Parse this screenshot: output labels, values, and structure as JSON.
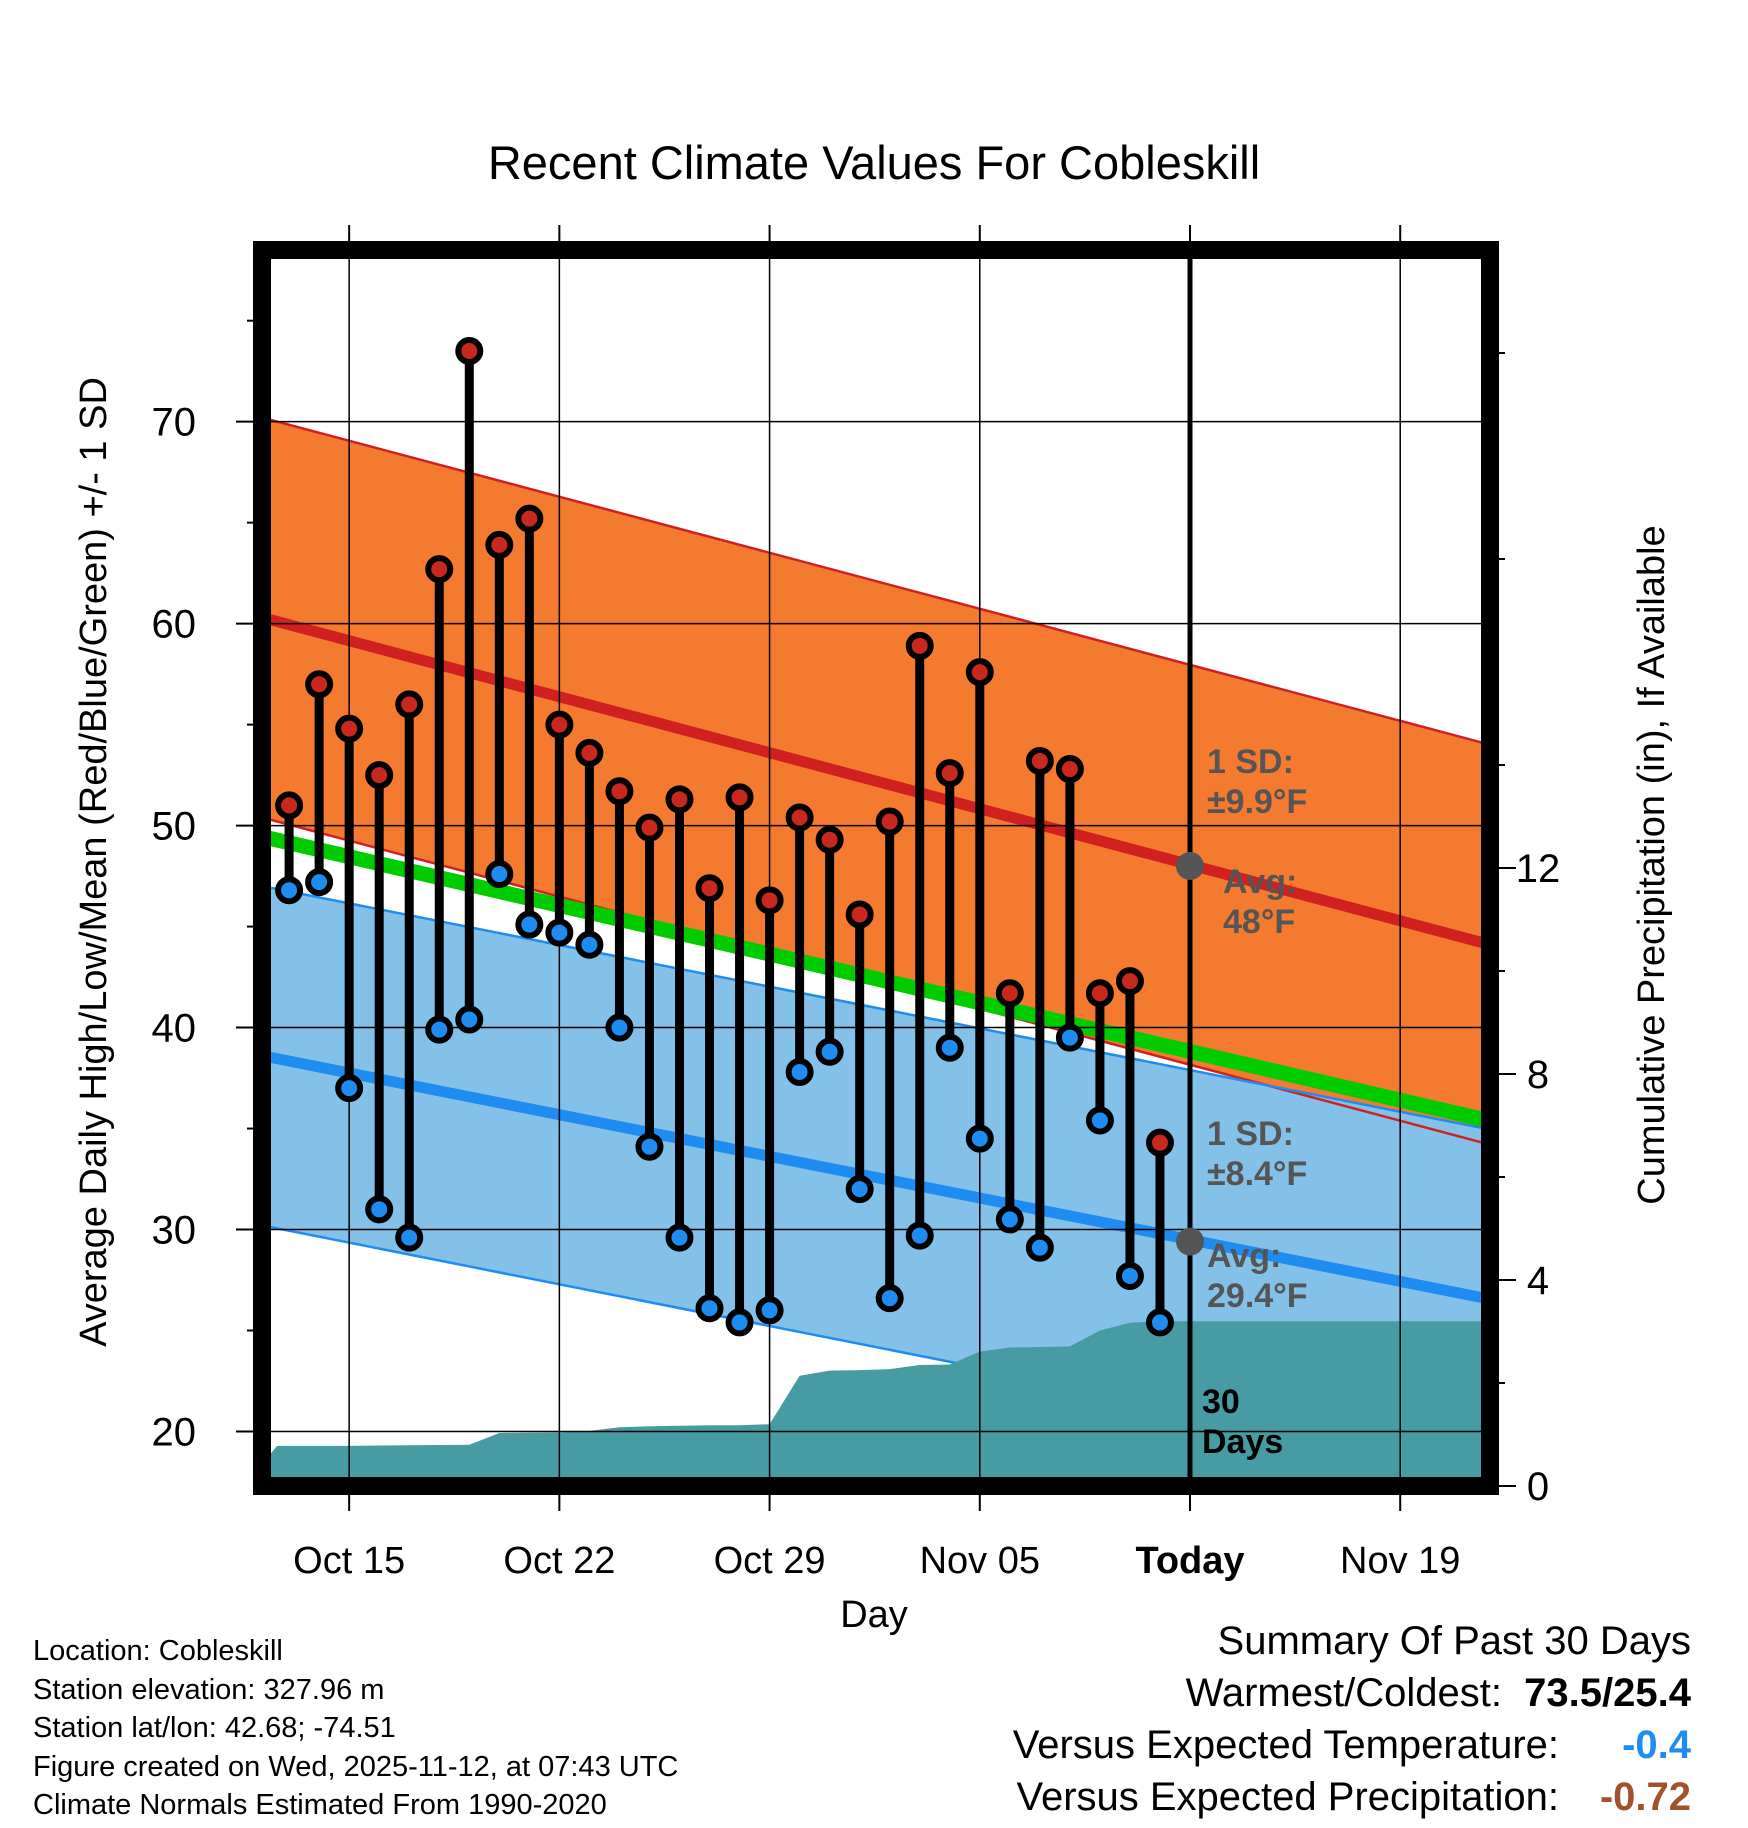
{
  "chart_data": {
    "type": "line",
    "title": "Recent Climate Values For Cobleskill",
    "xlabel": "Day",
    "ylabel": "Average Daily High/Low/Mean (Red/Blue/Green) +/- 1 SD",
    "y2label": "Cumulative Precipitation (in), If Available",
    "ylim": [
      17.3,
      78.5
    ],
    "y2lim": [
      0,
      24
    ],
    "xlim": [
      -31.9,
      10.5
    ],
    "x_ticks": [
      {
        "day": -28,
        "label": "Oct 15"
      },
      {
        "day": -21,
        "label": "Oct 22"
      },
      {
        "day": -14,
        "label": "Oct 29"
      },
      {
        "day": -7,
        "label": "Nov 05"
      },
      {
        "day": 0,
        "label": "Today"
      },
      {
        "day": 7,
        "label": "Nov 19"
      }
    ],
    "y_ticks": [
      20,
      30,
      40,
      50,
      60,
      70
    ],
    "y2_ticks": [
      0,
      4,
      8,
      12
    ],
    "normals": {
      "high_avg": {
        "start": 60.7,
        "end": 43.9
      },
      "high_sd": 9.9,
      "low_avg": {
        "start": 38.9,
        "end": 26.4
      },
      "low_sd": 8.4,
      "mean": {
        "start": 49.8,
        "end": 35.2
      }
    },
    "series": [
      {
        "name": "Daily High",
        "color": "#c8281e",
        "days": [
          -30,
          -29,
          -28,
          -27,
          -26,
          -25,
          -24,
          -23,
          -22,
          -21,
          -20,
          -19,
          -18,
          -17,
          -16,
          -15,
          -14,
          -13,
          -12,
          -11,
          -10,
          -9,
          -8,
          -7,
          -6,
          -5,
          -4,
          -3,
          -2,
          -1
        ],
        "values": [
          51.0,
          57.0,
          54.8,
          52.5,
          56.0,
          62.7,
          73.5,
          63.9,
          65.2,
          55.0,
          53.6,
          51.7,
          49.9,
          51.3,
          46.9,
          51.4,
          46.3,
          50.4,
          49.3,
          45.6,
          50.2,
          58.9,
          52.6,
          57.6,
          41.7,
          53.2,
          52.8,
          41.7,
          42.3,
          34.3
        ]
      },
      {
        "name": "Daily Low",
        "color": "#1e8cf0",
        "days": [
          -30,
          -29,
          -28,
          -27,
          -26,
          -25,
          -24,
          -23,
          -22,
          -21,
          -20,
          -19,
          -18,
          -17,
          -16,
          -15,
          -14,
          -13,
          -12,
          -11,
          -10,
          -9,
          -8,
          -7,
          -6,
          -5,
          -4,
          -3,
          -2,
          -1
        ],
        "values": [
          46.8,
          47.2,
          37.0,
          31.0,
          29.6,
          39.9,
          40.4,
          47.6,
          45.1,
          44.7,
          44.1,
          40.0,
          34.1,
          29.6,
          26.1,
          25.4,
          26.0,
          37.8,
          38.8,
          32.0,
          26.6,
          29.7,
          39.0,
          34.5,
          30.5,
          29.1,
          39.5,
          35.4,
          27.7,
          25.4
        ]
      },
      {
        "name": "Cumulative Precipitation",
        "color": "#479ba3",
        "days": [
          -31.5,
          -30.4,
          -28,
          -24,
          -23,
          -21,
          -20,
          -19,
          -18,
          -17,
          -16,
          -15,
          -14,
          -13,
          -12,
          -11,
          -10,
          -9,
          -8,
          -7,
          -6,
          -5,
          -4,
          -3,
          -2,
          -1,
          10.0
        ],
        "values": [
          0,
          0.78,
          0.78,
          0.8,
          1.03,
          1.04,
          1.07,
          1.14,
          1.16,
          1.17,
          1.18,
          1.18,
          1.2,
          2.14,
          2.24,
          2.25,
          2.27,
          2.35,
          2.36,
          2.61,
          2.69,
          2.7,
          2.71,
          3.02,
          3.17,
          3.2,
          3.2
        ]
      }
    ],
    "annotations": {
      "high_sd_label": [
        "1 SD:",
        "±9.9°F"
      ],
      "high_avg_label": [
        "Avg:",
        "48°F"
      ],
      "low_sd_label": [
        "1 SD:",
        "±8.4°F"
      ],
      "low_avg_label": [
        "Avg:",
        "29.4°F"
      ],
      "period_label": [
        "30",
        "Days"
      ],
      "high_avg_today": 48,
      "low_avg_today": 29.4
    }
  },
  "info": {
    "location": "Location: Cobleskill",
    "elevation": "Station elevation: 327.96 m",
    "latlon": "Station lat/lon: 42.68; -74.51",
    "created": "Figure created on Wed, 2025-11-12, at 07:43 UTC",
    "normals": "Climate Normals Estimated From 1990-2020"
  },
  "summary": {
    "title": "Summary Of Past 30 Days",
    "warm_cold_label": "Warmest/Coldest:",
    "warm_cold_value": "73.5/25.4",
    "temp_label": "Versus Expected Temperature:",
    "temp_value": "-0.4",
    "temp_color": "#1e8cf0",
    "precip_label": "Versus Expected Precipitation:",
    "precip_value": "-0.72",
    "precip_color": "#a0522d"
  },
  "colors": {
    "high_band": "#f47a30",
    "high_line": "#d02020",
    "low_band": "#84c1e8",
    "low_line": "#1e8cf0",
    "mean_line": "#00cc00",
    "precip": "#479ba3",
    "marker_text": "#555555"
  }
}
